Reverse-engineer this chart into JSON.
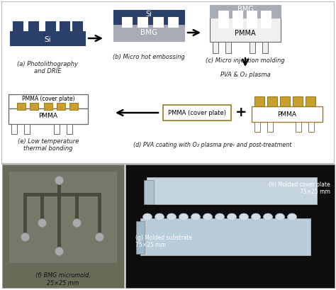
{
  "bg_color": "#ffffff",
  "si_color": "#2b3f6b",
  "bmg_color": "#a8adb5",
  "pmma_color": "#f0f0f0",
  "pmma_border": "#666666",
  "gold_color": "#c8a030",
  "gold_border": "#a07820",
  "white": "#ffffff",
  "black": "#000000",
  "text_color": "#222222",
  "photo_bg1": "#5a5e52",
  "photo_bg2": "#111111",
  "label_a": "(a) Photolithography\nand DRIE",
  "label_b": "(b) Micro hot embossing",
  "label_c": "(c) Micro injection molding",
  "label_d": "(d) PVA coating with O₂ plasma pre- and post-treatment",
  "label_e": "(e) Low temperature\nthermal bonding",
  "label_f": "(f) BMG micromold,\n25×25 mm",
  "label_g": "(g) Molded substrate\n75×25 mm",
  "label_h": "(h) Molded cover plate\n75×25 mm",
  "pva_text1": "PVA & O₂ plasma",
  "pva_text2": "PVA & O₂ plasma",
  "si_text": "Si",
  "bmg_text": "BMG",
  "pmma_text": "PMMA",
  "pmma_cover_text": "PMMA (cover plate)"
}
